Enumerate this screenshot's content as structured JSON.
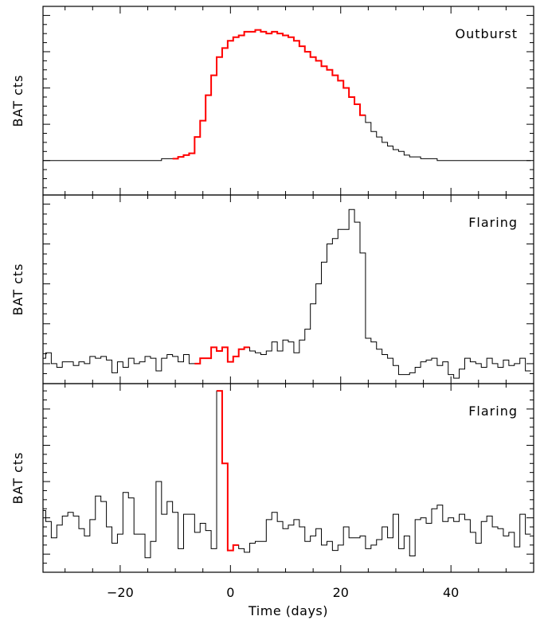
{
  "chart_data": {
    "type": "line",
    "xlabel": "Time (days)",
    "xlim": [
      -34,
      55
    ],
    "xticks": [
      -20,
      0,
      20,
      40
    ],
    "highlight_color": "#ff0000",
    "panels": [
      {
        "label": "Outburst",
        "ylabel": "BAT cts",
        "ylim": [
          0,
          104
        ],
        "yticks": [
          19,
          39,
          59,
          79,
          99
        ],
        "series_x_start": -34,
        "series_x_step": 1,
        "values": [
          19,
          19,
          19,
          19,
          19,
          19,
          19,
          19,
          19,
          19,
          19,
          19,
          19,
          19,
          19,
          19,
          19,
          19,
          19,
          19,
          19,
          19,
          20,
          20,
          20,
          21,
          22,
          23,
          32,
          41,
          55,
          66,
          76,
          81,
          85,
          87,
          88,
          90,
          90,
          91,
          90,
          89,
          90,
          89,
          88,
          87,
          85,
          82,
          79,
          76,
          74,
          71,
          69,
          66,
          63,
          59,
          54,
          50,
          44,
          40,
          35,
          32,
          29,
          27,
          25,
          24,
          22,
          21,
          21,
          20,
          20,
          20,
          19,
          19,
          19,
          19,
          19,
          19,
          19,
          19,
          19,
          19,
          19,
          19,
          19,
          19,
          19,
          19,
          19
        ],
        "highlight_x": [
          -10,
          24
        ]
      },
      {
        "label": "Flaring",
        "ylabel": "BAT cts",
        "ylim": [
          0,
          104
        ],
        "yticks": [
          11,
          33,
          55,
          77,
          99
        ],
        "series_x_start": -34,
        "series_x_step": 1,
        "values": [
          14,
          17,
          11,
          9,
          12,
          12,
          10,
          12,
          11,
          15,
          14,
          15,
          13,
          6,
          12,
          9,
          14,
          11,
          12,
          15,
          14,
          7,
          14,
          16,
          15,
          12,
          16,
          11,
          11,
          14,
          14,
          20,
          18,
          20,
          12,
          15,
          19,
          20,
          18,
          17,
          16,
          18,
          23,
          18,
          24,
          23,
          17,
          24,
          30,
          44,
          55,
          67,
          77,
          80,
          85,
          85,
          96,
          89,
          72,
          25,
          23,
          19,
          16,
          14,
          10,
          5,
          5,
          6,
          9,
          12,
          13,
          14,
          10,
          12,
          5,
          3,
          8,
          14,
          12,
          11,
          9,
          14,
          11,
          9,
          13,
          10,
          11,
          14,
          7
        ],
        "highlight_x": [
          -6,
          3
        ]
      },
      {
        "label": "Flaring",
        "ylabel": "BAT cts",
        "ylim": [
          0,
          104
        ],
        "yticks": [
          10,
          30,
          50,
          70,
          90
        ],
        "series_x_start": -34,
        "series_x_step": 1,
        "values": [
          34,
          28,
          19,
          26,
          31,
          33,
          31,
          24,
          20,
          29,
          42,
          39,
          25,
          16,
          21,
          44,
          41,
          21,
          21,
          8,
          17,
          50,
          32,
          39,
          33,
          13,
          32,
          32,
          22,
          27,
          23,
          13,
          15,
          9,
          16,
          15,
          13,
          11,
          16,
          17,
          17,
          29,
          33,
          28,
          24,
          26,
          29,
          25,
          17,
          20,
          24,
          15,
          17,
          12,
          15,
          25,
          19,
          19,
          20,
          13,
          15,
          18,
          25,
          19,
          32,
          13,
          20,
          9,
          29,
          30,
          27,
          35,
          37,
          28,
          30,
          28,
          32,
          29,
          22,
          16,
          28,
          31,
          25,
          24,
          20,
          22,
          14,
          32,
          21
        ],
        "highlight_x": [
          -2,
          1
        ],
        "spike": {
          "x": [
            -2,
            -1,
            0
          ],
          "values": [
            100,
            60,
            12
          ]
        }
      }
    ]
  }
}
